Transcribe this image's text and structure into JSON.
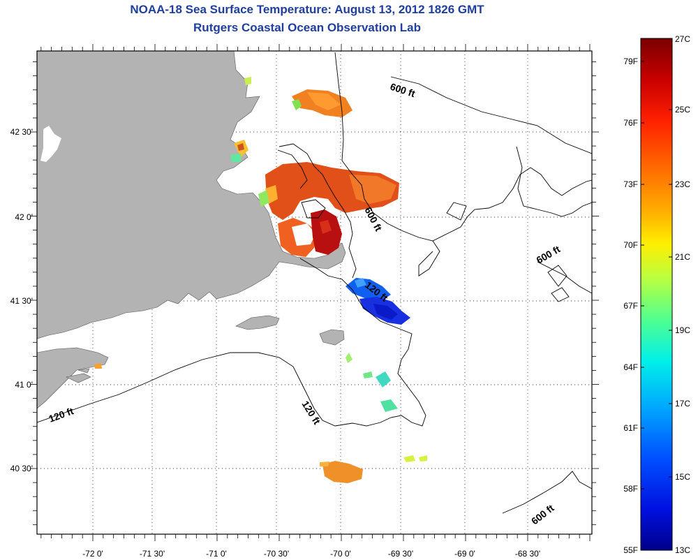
{
  "title": {
    "line1": "NOAA-18 Sea Surface Temperature:  August 13, 2012 1826 GMT",
    "line2": "Rutgers Coastal Ocean Observation Lab"
  },
  "colors": {
    "title": "#1f3fa0",
    "land": "#b3b3b3",
    "water": "#ffffff",
    "contour": "#000000"
  },
  "axes": {
    "lon_labels": [
      "-72 0'",
      "-71 30'",
      "-71 0'",
      "-70 30'",
      "-70 0'",
      "-69 30'",
      "-69 0'",
      "-68 30'"
    ],
    "lat_labels": [
      "42 30'",
      "42 0'",
      "41 30'",
      "41 0'",
      "40 30'"
    ]
  },
  "contour_labels": [
    "600 ft",
    "600 ft",
    "600 ft",
    "600 ft",
    "120 ft",
    "120 ft",
    "120 ft"
  ],
  "colorbar": {
    "fahrenheit": [
      "79F",
      "76F",
      "73F",
      "70F",
      "67F",
      "64F",
      "61F",
      "58F",
      "55F"
    ],
    "celsius": [
      "27C",
      "25C",
      "23C",
      "21C",
      "19C",
      "17C",
      "15C",
      "13C"
    ],
    "colors": [
      "#7a0000",
      "#c80000",
      "#ff2000",
      "#ff7000",
      "#ffb000",
      "#ffee00",
      "#b8ff40",
      "#50ff90",
      "#00f0e8",
      "#00a8ff",
      "#0050ff",
      "#0010e0",
      "#00008a"
    ]
  }
}
